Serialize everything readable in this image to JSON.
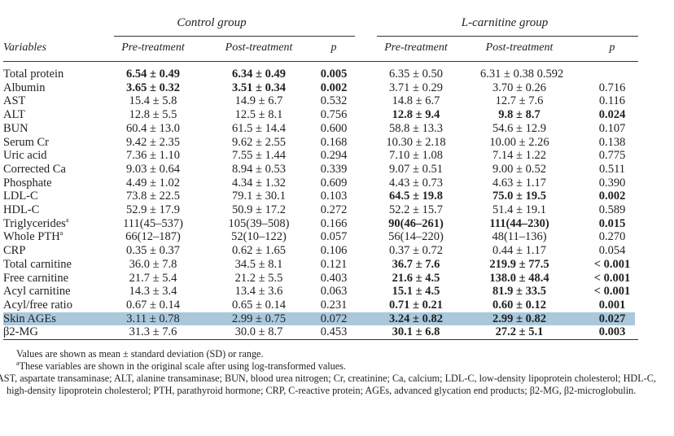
{
  "groups": {
    "control": "Control group",
    "lcarnitine": "L-carnitine group"
  },
  "headers": [
    "Variables",
    "Pre-treatment",
    "Post-treatment",
    "p",
    "Pre-treatment",
    "Post-treatment",
    "p"
  ],
  "rows": [
    {
      "v": "Total protein",
      "c": [
        "6.54 ± 0.49",
        "6.34 ± 0.49",
        "0.005",
        "6.35 ± 0.50",
        "6.31 ± 0.38 0.592",
        ""
      ],
      "bold": [
        0,
        1,
        2
      ]
    },
    {
      "v": "Albumin",
      "c": [
        "3.65 ± 0.32",
        "3.51 ± 0.34",
        "0.002",
        "3.71 ± 0.29",
        "3.70 ± 0.26",
        "0.716"
      ],
      "bold": [
        0,
        1,
        2
      ]
    },
    {
      "v": "AST",
      "c": [
        "15.4 ± 5.8",
        "14.9 ± 6.7",
        "0.532",
        "14.8 ± 6.7",
        "12.7 ± 7.6",
        "0.116"
      ],
      "bold": []
    },
    {
      "v": "ALT",
      "c": [
        "12.8 ± 5.5",
        "12.5 ± 8.1",
        "0.756",
        "12.8 ± 9.4",
        "9.8 ± 8.7",
        "0.024"
      ],
      "bold": [
        3,
        4,
        5
      ]
    },
    {
      "v": "BUN",
      "c": [
        "60.4 ± 13.0",
        "61.5 ± 14.4",
        "0.600",
        "58.8 ± 13.3",
        "54.6 ± 12.9",
        "0.107"
      ],
      "bold": []
    },
    {
      "v": "Serum Cr",
      "c": [
        "9.42 ± 2.35",
        "9.62 ± 2.55",
        "0.168",
        "10.30 ± 2.18",
        "10.00 ± 2.26",
        "0.138"
      ],
      "bold": []
    },
    {
      "v": "Uric acid",
      "c": [
        "7.36 ± 1.10",
        "7.55 ± 1.44",
        "0.294",
        "7.10 ± 1.08",
        "7.14 ± 1.22",
        "0.775"
      ],
      "bold": []
    },
    {
      "v": "Corrected Ca",
      "c": [
        "9.03 ± 0.64",
        "8.94 ± 0.53",
        "0.339",
        "9.07 ± 0.51",
        "9.00 ± 0.52",
        "0.511"
      ],
      "bold": []
    },
    {
      "v": "Phosphate",
      "c": [
        "4.49 ± 1.02",
        "4.34 ± 1.32",
        "0.609",
        "4.43 ± 0.73",
        "4.63 ± 1.17",
        "0.390"
      ],
      "bold": []
    },
    {
      "v": "LDL-C",
      "c": [
        "73.8 ± 22.5",
        "79.1 ± 30.1",
        "0.103",
        "64.5 ± 19.8",
        "75.0 ± 19.5",
        "0.002"
      ],
      "bold": [
        3,
        4,
        5
      ]
    },
    {
      "v": "HDL-C",
      "c": [
        "52.9 ± 17.9",
        "50.9 ± 17.2",
        "0.272",
        "52.2 ± 15.7",
        "51.4 ± 19.1",
        "0.589"
      ],
      "bold": []
    },
    {
      "v": "Triglycerides",
      "sup": "a",
      "c": [
        "111(45–537)",
        "105(39–508)",
        "0.166",
        "90(46–261)",
        "111(44–230)",
        "0.015"
      ],
      "bold": [
        3,
        4,
        5
      ]
    },
    {
      "v": "Whole PTH",
      "sup": "a",
      "c": [
        "66(12–187)",
        "52(10–122)",
        "0.057",
        "56(14–220)",
        "48(11–136)",
        "0.270"
      ],
      "bold": []
    },
    {
      "v": "CRP",
      "c": [
        "0.35 ± 0.37",
        "0.62 ± 1.65",
        "0.106",
        "0.37 ± 0.72",
        "0.44 ± 1.17",
        "0.054"
      ],
      "bold": []
    },
    {
      "v": "Total carnitine",
      "c": [
        "36.0 ± 7.8",
        "34.5 ± 8.1",
        "0.121",
        "36.7 ± 7.6",
        "219.9 ± 77.5",
        "< 0.001"
      ],
      "bold": [
        3,
        4,
        5
      ]
    },
    {
      "v": "Free carnitine",
      "c": [
        "21.7 ± 5.4",
        "21.2 ± 5.5",
        "0.403",
        "21.6 ± 4.5",
        "138.0 ± 48.4",
        "< 0.001"
      ],
      "bold": [
        3,
        4,
        5
      ]
    },
    {
      "v": "Acyl carnitine",
      "c": [
        "14.3 ± 3.4",
        "13.4 ± 3.6",
        "0.063",
        "15.1 ± 4.5",
        "81.9 ± 33.5",
        "< 0.001"
      ],
      "bold": [
        3,
        4,
        5
      ]
    },
    {
      "v": "Acyl/free ratio",
      "c": [
        "0.67 ± 0.14",
        "0.65 ± 0.14",
        "0.231",
        "0.71 ± 0.21",
        "0.60 ± 0.12",
        "0.001"
      ],
      "bold": [
        3,
        4,
        5
      ]
    },
    {
      "v": "Skin AGEs",
      "c": [
        "3.11 ± 0.78",
        "2.99 ± 0.75",
        "0.072",
        "3.24 ± 0.82",
        "2.99 ± 0.82",
        "0.027"
      ],
      "bold": [
        3,
        4,
        5
      ],
      "highlight": true
    },
    {
      "v": "β2-MG",
      "c": [
        "31.3 ± 7.6",
        "30.0 ± 8.7",
        "0.453",
        "30.1 ± 6.8",
        "27.2 ± 5.1",
        "0.003"
      ],
      "bold": [
        3,
        4,
        5
      ]
    }
  ],
  "highlight_color": "#a9c8dc",
  "notes": {
    "line1": "Values are shown as mean ± standard deviation (SD) or range.",
    "line2_sup": "a",
    "line2": "These variables are shown in the original scale after using log-transformed values.",
    "line3": "AST, aspartate transaminase; ALT, alanine transaminase; BUN, blood urea nitrogen; Cr, creatinine; Ca, calcium; LDL-C, low-density lipoprotein cholesterol; HDL-C, high-density lipoprotein cholesterol; PTH, parathyroid hormone; CRP, C-reactive protein; AGEs, advanced glycation end products; β2-MG, β2-microglobulin."
  }
}
